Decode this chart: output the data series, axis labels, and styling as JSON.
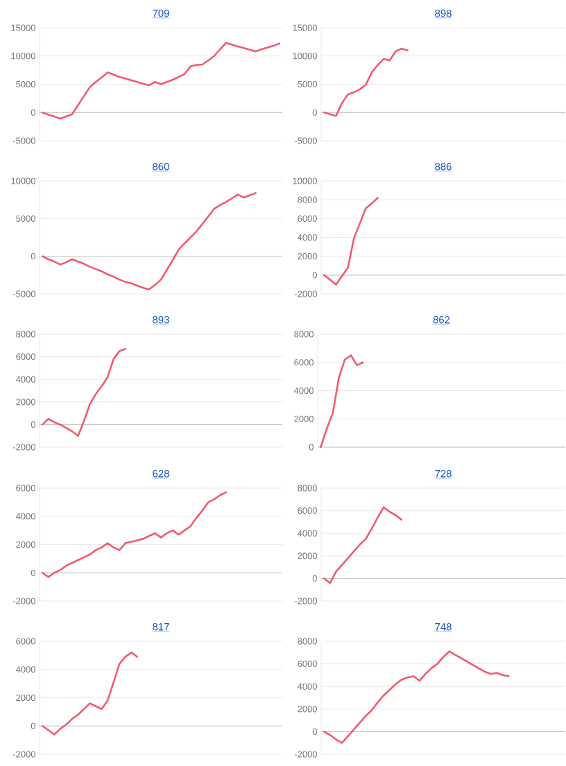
{
  "chart_data": [
    {
      "type": "line",
      "title": "709",
      "ylim": [
        -5000,
        15000
      ],
      "yticks": [
        -5000,
        0,
        5000,
        10000,
        15000
      ],
      "grid": "y",
      "tick_labels": "y",
      "marker": "none",
      "categories": [
        null,
        null,
        null,
        null,
        null,
        null,
        null,
        null,
        null,
        null,
        null,
        null,
        null,
        null,
        null,
        null,
        null,
        null,
        null,
        null,
        null,
        null,
        null,
        null,
        null,
        null,
        null,
        null,
        null,
        null,
        null,
        null,
        null,
        null,
        null,
        null,
        null,
        null,
        null,
        null,
        null
      ],
      "series": [
        {
          "color": "#f25a70",
          "values": [
            0,
            -400,
            -700,
            -1100,
            -700,
            -300,
            1300,
            2900,
            4500,
            5400,
            6200,
            7100,
            6700,
            6300,
            6000,
            5700,
            5400,
            5100,
            4800,
            5400,
            5000,
            5400,
            5800,
            6300,
            6800,
            8200,
            8400,
            8500,
            9200,
            10000,
            11200,
            12300,
            12000,
            11700,
            11400,
            11100,
            10800,
            11200,
            11500,
            11800,
            12200
          ]
        }
      ]
    },
    {
      "type": "line",
      "title": "898",
      "ylim": [
        -5000,
        15000
      ],
      "yticks": [
        -5000,
        0,
        5000,
        10000,
        15000
      ],
      "grid": "y",
      "tick_labels": "y",
      "marker": "none",
      "categories": [
        null,
        null,
        null,
        null,
        null,
        null,
        null,
        null,
        null,
        null,
        null,
        null,
        null,
        null,
        null,
        null,
        null,
        null,
        null,
        null,
        null,
        null,
        null,
        null,
        null,
        null,
        null,
        null,
        null,
        null,
        null,
        null,
        null,
        null,
        null,
        null,
        null,
        null,
        null,
        null,
        null
      ],
      "series": [
        {
          "color": "#f25a70",
          "values": [
            0,
            -300,
            -600,
            1700,
            3200,
            3600,
            4100,
            4900,
            7100,
            8400,
            9500,
            9200,
            10800,
            11300,
            11000,
            null,
            null,
            null,
            null,
            null,
            null,
            null,
            null,
            null,
            null,
            null,
            null,
            null,
            null,
            null,
            null,
            null,
            null,
            null,
            null,
            null,
            null,
            null,
            null,
            null,
            null
          ]
        }
      ]
    },
    {
      "type": "line",
      "title": "860",
      "ylim": [
        -5000,
        10000
      ],
      "yticks": [
        -5000,
        0,
        5000,
        10000
      ],
      "grid": "y",
      "tick_labels": "y",
      "marker": "none",
      "categories": [
        null,
        null,
        null,
        null,
        null,
        null,
        null,
        null,
        null,
        null,
        null,
        null,
        null,
        null,
        null,
        null,
        null,
        null,
        null,
        null,
        null,
        null,
        null,
        null,
        null,
        null,
        null,
        null,
        null,
        null,
        null,
        null,
        null,
        null,
        null,
        null,
        null,
        null,
        null,
        null,
        null
      ],
      "series": [
        {
          "color": "#f25a70",
          "values": [
            0,
            -400,
            -700,
            -1100,
            -800,
            -400,
            -700,
            -1000,
            -1400,
            -1700,
            -2000,
            -2400,
            -2700,
            -3100,
            -3400,
            -3600,
            -3900,
            -4200,
            -4400,
            -3800,
            -3100,
            -1800,
            -500,
            900,
            1700,
            2500,
            3300,
            4300,
            5300,
            6300,
            6800,
            7200,
            7700,
            8200,
            7800,
            8100,
            8400,
            null,
            null,
            null,
            null
          ]
        }
      ]
    },
    {
      "type": "line",
      "title": "886",
      "ylim": [
        -2000,
        10000
      ],
      "yticks": [
        -2000,
        0,
        2000,
        4000,
        6000,
        8000,
        10000
      ],
      "grid": "y",
      "tick_labels": "y",
      "marker": "none",
      "categories": [
        null,
        null,
        null,
        null,
        null,
        null,
        null,
        null,
        null,
        null,
        null,
        null,
        null,
        null,
        null,
        null,
        null,
        null,
        null,
        null,
        null,
        null,
        null,
        null,
        null,
        null,
        null,
        null,
        null,
        null,
        null,
        null,
        null,
        null,
        null,
        null,
        null,
        null,
        null,
        null,
        null
      ],
      "series": [
        {
          "color": "#f25a70",
          "values": [
            0,
            -500,
            -1000,
            -100,
            800,
            3900,
            5500,
            7100,
            7600,
            8200,
            null,
            null,
            null,
            null,
            null,
            null,
            null,
            null,
            null,
            null,
            null,
            null,
            null,
            null,
            null,
            null,
            null,
            null,
            null,
            null,
            null,
            null,
            null,
            null,
            null,
            null,
            null,
            null,
            null,
            null,
            null
          ]
        }
      ]
    },
    {
      "type": "line",
      "title": "893",
      "ylim": [
        -2000,
        8000
      ],
      "yticks": [
        -2000,
        0,
        2000,
        4000,
        6000,
        8000
      ],
      "grid": "y",
      "tick_labels": "y",
      "marker": "none",
      "categories": [
        null,
        null,
        null,
        null,
        null,
        null,
        null,
        null,
        null,
        null,
        null,
        null,
        null,
        null,
        null,
        null,
        null,
        null,
        null,
        null,
        null,
        null,
        null,
        null,
        null,
        null,
        null,
        null,
        null,
        null,
        null,
        null,
        null,
        null,
        null,
        null,
        null,
        null,
        null,
        null,
        null
      ],
      "series": [
        {
          "color": "#f25a70",
          "values": [
            0,
            500,
            200,
            0,
            -300,
            -600,
            -1000,
            300,
            1800,
            2700,
            3400,
            4200,
            5800,
            6500,
            6700,
            null,
            null,
            null,
            null,
            null,
            null,
            null,
            null,
            null,
            null,
            null,
            null,
            null,
            null,
            null,
            null,
            null,
            null,
            null,
            null,
            null,
            null,
            null,
            null,
            null,
            null
          ]
        }
      ]
    },
    {
      "type": "line",
      "title": "862",
      "ylim": [
        0,
        8000
      ],
      "yticks": [
        0,
        2000,
        4000,
        6000,
        8000
      ],
      "grid": "y",
      "tick_labels": "y",
      "marker": "none",
      "categories": [
        null,
        null,
        null,
        null,
        null,
        null,
        null,
        null,
        null,
        null,
        null,
        null,
        null,
        null,
        null,
        null,
        null,
        null,
        null,
        null,
        null,
        null,
        null,
        null,
        null,
        null,
        null,
        null,
        null,
        null,
        null,
        null,
        null,
        null,
        null,
        null,
        null,
        null,
        null,
        null,
        null
      ],
      "series": [
        {
          "color": "#f25a70",
          "values": [
            0,
            1300,
            2400,
            4900,
            6200,
            6500,
            5800,
            6000,
            null,
            null,
            null,
            null,
            null,
            null,
            null,
            null,
            null,
            null,
            null,
            null,
            null,
            null,
            null,
            null,
            null,
            null,
            null,
            null,
            null,
            null,
            null,
            null,
            null,
            null,
            null,
            null,
            null,
            null,
            null,
            null,
            null
          ]
        }
      ]
    },
    {
      "type": "line",
      "title": "628",
      "ylim": [
        -2000,
        6000
      ],
      "yticks": [
        -2000,
        0,
        2000,
        4000,
        6000
      ],
      "grid": "y",
      "tick_labels": "y",
      "marker": "none",
      "categories": [
        null,
        null,
        null,
        null,
        null,
        null,
        null,
        null,
        null,
        null,
        null,
        null,
        null,
        null,
        null,
        null,
        null,
        null,
        null,
        null,
        null,
        null,
        null,
        null,
        null,
        null,
        null,
        null,
        null,
        null,
        null,
        null,
        null,
        null,
        null,
        null,
        null,
        null,
        null,
        null,
        null
      ],
      "series": [
        {
          "color": "#f25a70",
          "values": [
            0,
            -300,
            0,
            200,
            500,
            700,
            900,
            1100,
            1300,
            1600,
            1800,
            2100,
            1800,
            1600,
            2100,
            2200,
            2300,
            2400,
            2600,
            2800,
            2500,
            2800,
            3000,
            2700,
            3000,
            3300,
            3900,
            4400,
            5000,
            5200,
            5500,
            5700,
            null,
            null,
            null,
            null,
            null,
            null,
            null,
            null,
            null
          ]
        }
      ]
    },
    {
      "type": "line",
      "title": "728",
      "ylim": [
        -2000,
        8000
      ],
      "yticks": [
        -2000,
        0,
        2000,
        4000,
        6000,
        8000
      ],
      "grid": "y",
      "tick_labels": "y",
      "marker": "none",
      "categories": [
        null,
        null,
        null,
        null,
        null,
        null,
        null,
        null,
        null,
        null,
        null,
        null,
        null,
        null,
        null,
        null,
        null,
        null,
        null,
        null,
        null,
        null,
        null,
        null,
        null,
        null,
        null,
        null,
        null,
        null,
        null,
        null,
        null,
        null,
        null,
        null,
        null,
        null,
        null,
        null,
        null
      ],
      "series": [
        {
          "color": "#f25a70",
          "values": [
            0,
            -400,
            600,
            1200,
            1800,
            2400,
            3000,
            3500,
            4400,
            5400,
            6300,
            5900,
            5600,
            5200,
            null,
            null,
            null,
            null,
            null,
            null,
            null,
            null,
            null,
            null,
            null,
            null,
            null,
            null,
            null,
            null,
            null,
            null,
            null,
            null,
            null,
            null,
            null,
            null,
            null,
            null,
            null
          ]
        }
      ]
    },
    {
      "type": "line",
      "title": "817",
      "ylim": [
        -2000,
        6000
      ],
      "yticks": [
        -2000,
        0,
        2000,
        4000,
        6000
      ],
      "grid": "y",
      "tick_labels": "y",
      "marker": "none",
      "categories": [
        null,
        null,
        null,
        null,
        null,
        null,
        null,
        null,
        null,
        null,
        null,
        null,
        null,
        null,
        null,
        null,
        null,
        null,
        null,
        null,
        null,
        null,
        null,
        null,
        null,
        null,
        null,
        null,
        null,
        null,
        null,
        null,
        null,
        null,
        null,
        null,
        null,
        null,
        null,
        null,
        null
      ],
      "series": [
        {
          "color": "#f25a70",
          "values": [
            0,
            -300,
            -600,
            -200,
            100,
            500,
            800,
            1200,
            1600,
            1400,
            1200,
            1800,
            3100,
            4400,
            4900,
            5200,
            4900,
            null,
            null,
            null,
            null,
            null,
            null,
            null,
            null,
            null,
            null,
            null,
            null,
            null,
            null,
            null,
            null,
            null,
            null,
            null,
            null,
            null,
            null,
            null,
            null
          ]
        }
      ]
    },
    {
      "type": "line",
      "title": "748",
      "ylim": [
        -2000,
        8000
      ],
      "yticks": [
        -2000,
        0,
        2000,
        4000,
        6000,
        8000
      ],
      "grid": "y",
      "tick_labels": "y",
      "marker": "none",
      "categories": [
        null,
        null,
        null,
        null,
        null,
        null,
        null,
        null,
        null,
        null,
        null,
        null,
        null,
        null,
        null,
        null,
        null,
        null,
        null,
        null,
        null,
        null,
        null,
        null,
        null,
        null,
        null,
        null,
        null,
        null,
        null,
        null,
        null,
        null,
        null,
        null,
        null,
        null,
        null,
        null,
        null
      ],
      "series": [
        {
          "color": "#f25a70",
          "values": [
            0,
            -300,
            -700,
            -1000,
            -400,
            200,
            800,
            1400,
            1900,
            2600,
            3200,
            3700,
            4200,
            4600,
            4800,
            4900,
            4500,
            5100,
            5600,
            6000,
            6600,
            7100,
            6800,
            6500,
            6200,
            5900,
            5600,
            5300,
            5100,
            5200,
            5000,
            4900,
            null,
            null,
            null,
            null,
            null,
            null,
            null,
            null,
            null
          ]
        }
      ]
    }
  ]
}
